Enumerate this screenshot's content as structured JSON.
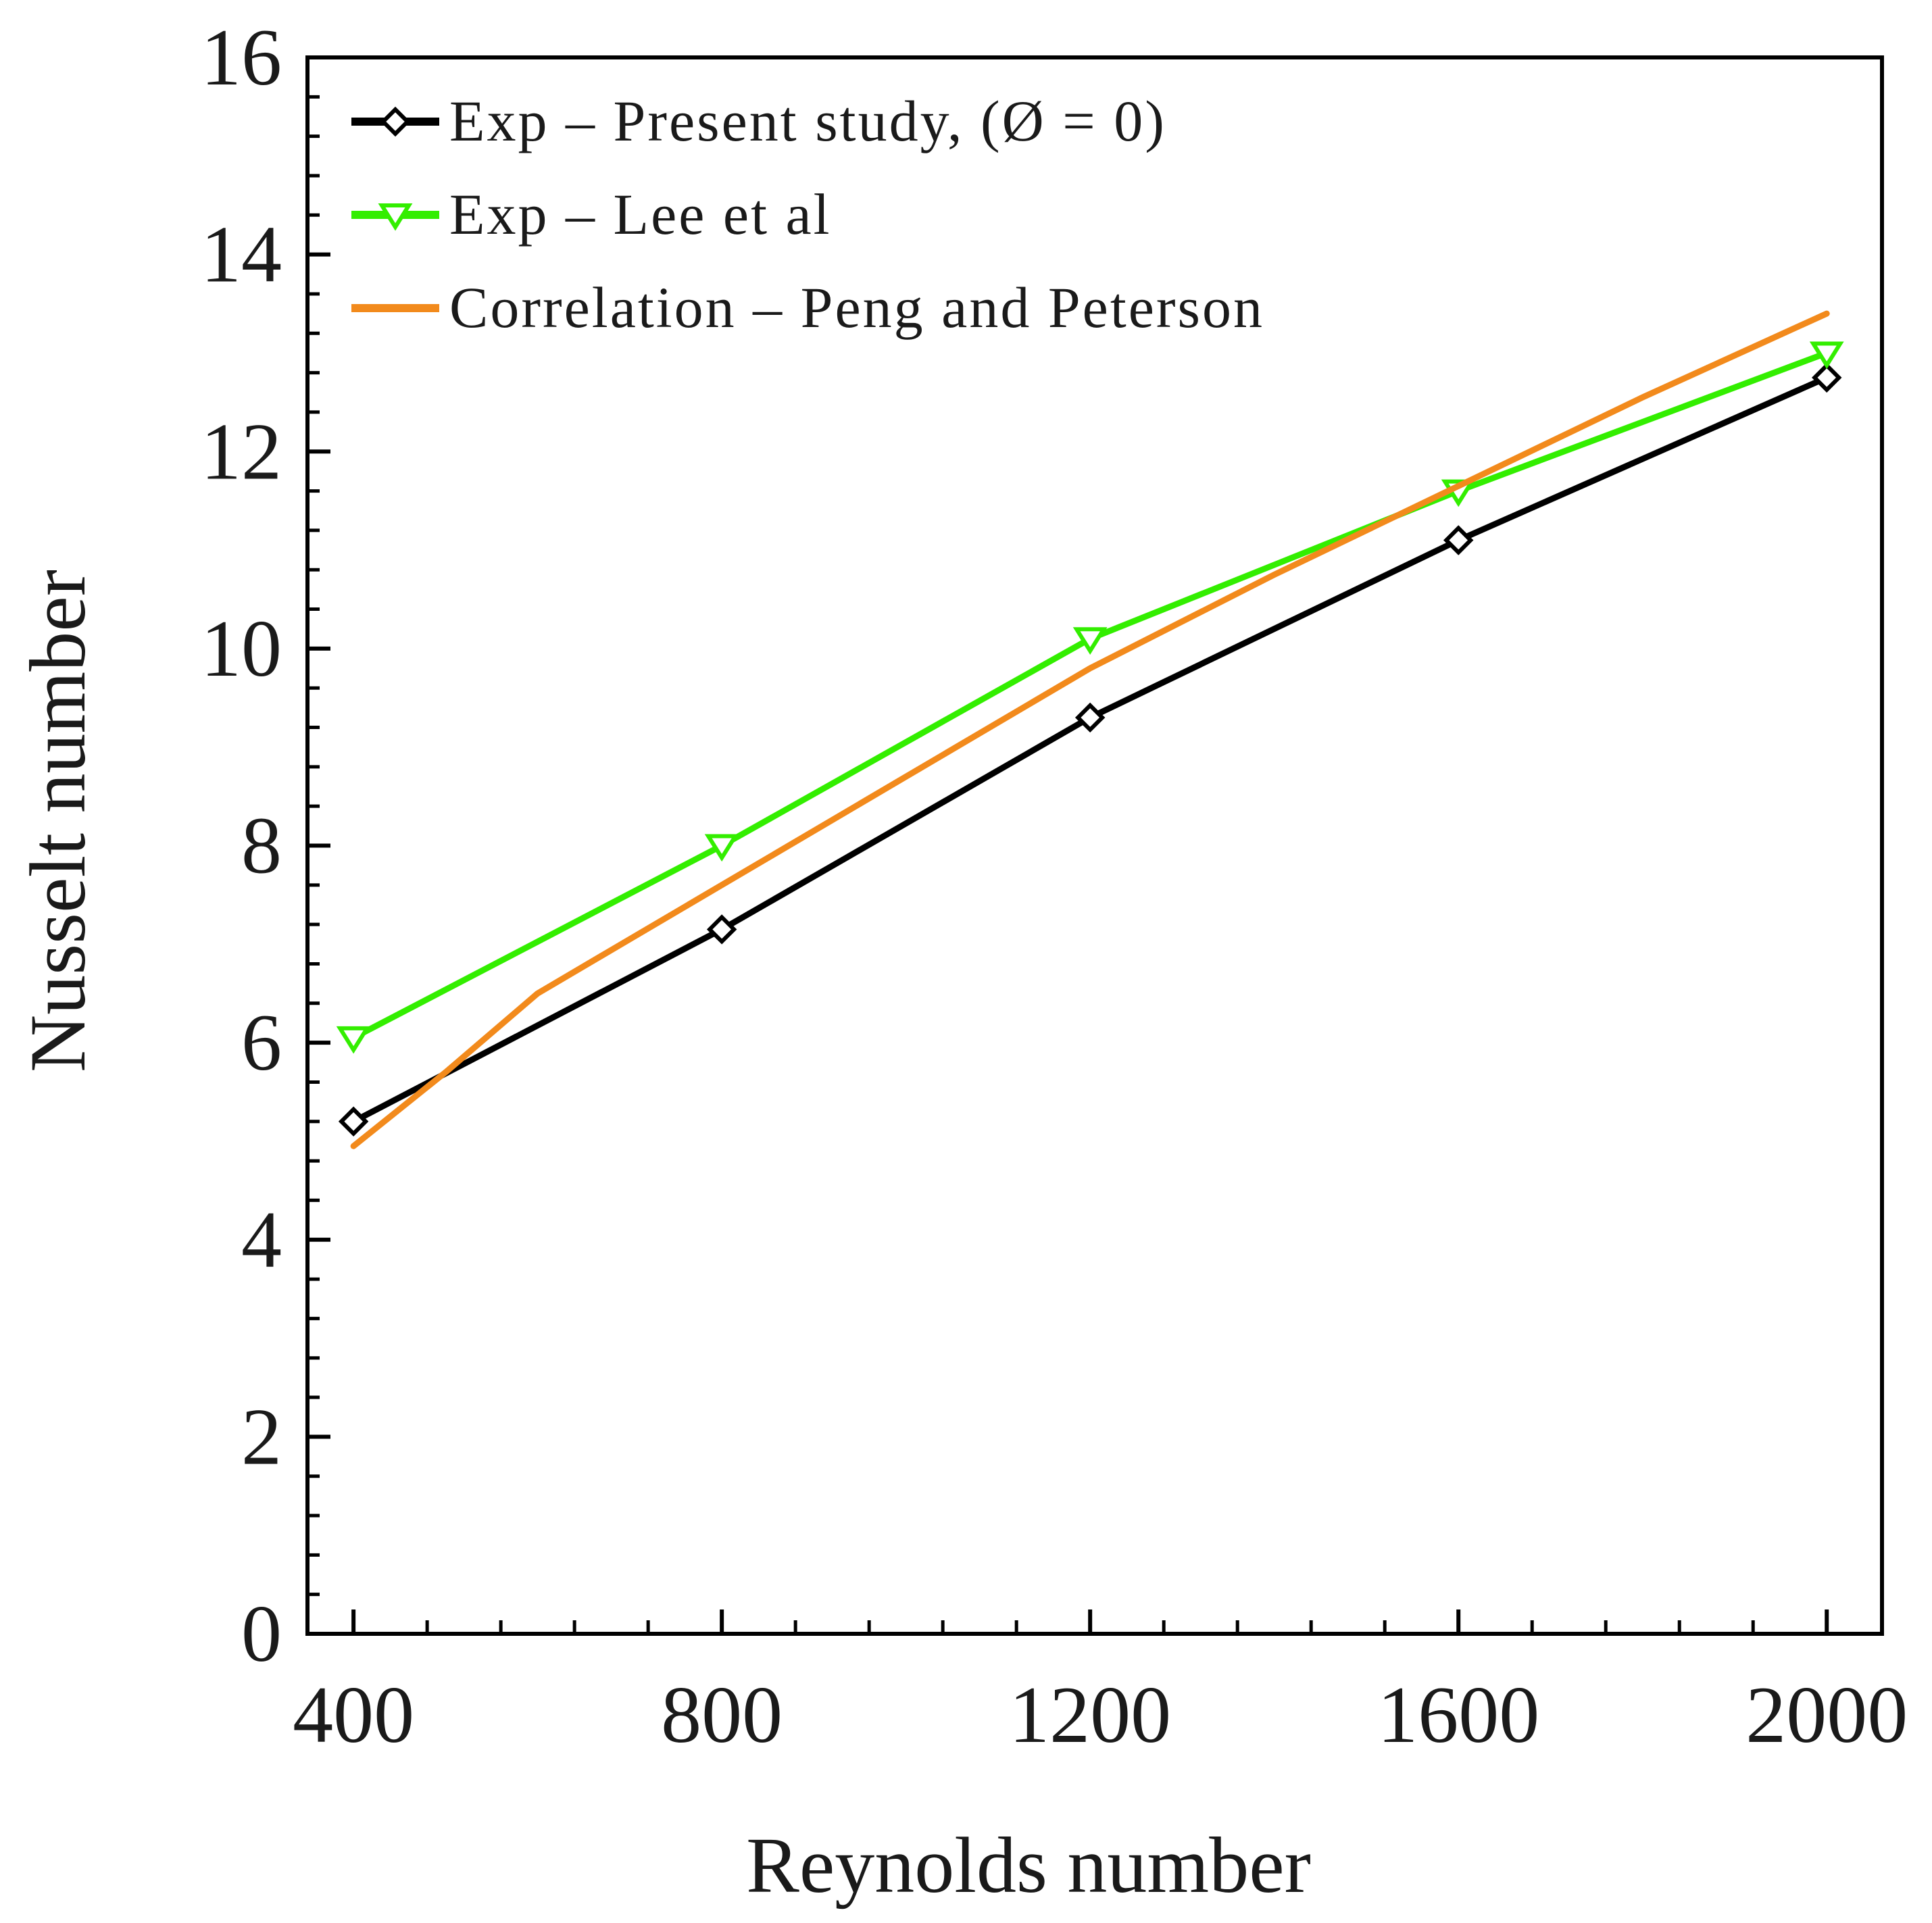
{
  "chart_data": {
    "type": "line",
    "title": "",
    "xlabel": "Reynolds number",
    "ylabel": "Nusselt number",
    "xlim": [
      350,
      2060
    ],
    "ylim": [
      0,
      16
    ],
    "xticks": [
      400,
      800,
      1200,
      1600,
      2000
    ],
    "xtick_labels": [
      "400",
      "800",
      "1200",
      "1600",
      "2000"
    ],
    "yticks": [
      0,
      2,
      4,
      6,
      8,
      10,
      12,
      14,
      16
    ],
    "ytick_labels": [
      "0",
      "2",
      "4",
      "6",
      "8",
      "10",
      "12",
      "14",
      "16"
    ],
    "x_minor_step": 80,
    "y_minor_step": 0.4,
    "grid": false,
    "legend_position": "top-left",
    "series": [
      {
        "name": "Exp – Present study, (Ø = 0)",
        "color": "#000000",
        "marker": "diamond-open",
        "x": [
          400,
          800,
          1200,
          1600,
          2000
        ],
        "y": [
          5.2,
          7.15,
          9.3,
          11.1,
          12.75
        ]
      },
      {
        "name": "Exp – Lee et al",
        "color": "#33ee00",
        "marker": "triangle-down-open",
        "x": [
          400,
          800,
          1200,
          1600,
          2000
        ],
        "y": [
          6.05,
          8.0,
          10.1,
          11.6,
          13.0
        ]
      },
      {
        "name": "Correlation – Peng and Peterson",
        "color": "#f28a1c",
        "marker": "none",
        "x": [
          400,
          500,
          600,
          700,
          800,
          1000,
          1200,
          1400,
          1600,
          1800,
          2000
        ],
        "y": [
          4.95,
          5.7,
          6.5,
          7.05,
          7.6,
          8.7,
          9.8,
          10.75,
          11.65,
          12.55,
          13.4
        ]
      }
    ]
  }
}
